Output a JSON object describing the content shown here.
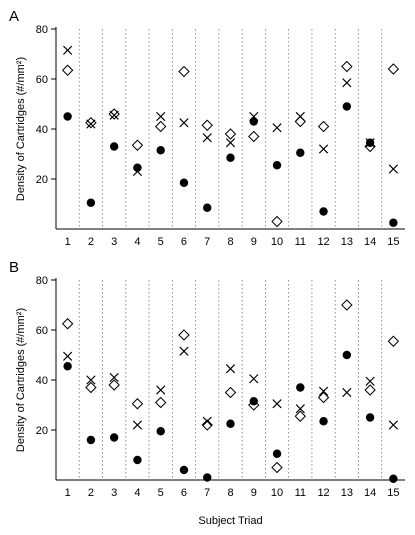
{
  "chart_data": [
    {
      "type": "scatter",
      "panel_label": "A",
      "ylabel": "Density of Cartridges (#/mm²)",
      "xlabel": "",
      "ylim": [
        0,
        80
      ],
      "yticks": [
        20,
        40,
        60,
        80
      ],
      "categories": [
        "1",
        "2",
        "3",
        "4",
        "5",
        "6",
        "7",
        "8",
        "9",
        "10",
        "11",
        "12",
        "13",
        "14",
        "15"
      ],
      "grid": "dotted vertical separators between triads",
      "series": [
        {
          "marker": "filled-circle",
          "values": [
            45,
            10.5,
            33,
            24.5,
            31.5,
            18.5,
            8.5,
            28.5,
            43,
            25.5,
            30.5,
            7,
            49,
            34.5,
            2.5
          ]
        },
        {
          "marker": "cross",
          "values": [
            71.5,
            42,
            45.5,
            23,
            45,
            42.5,
            36.5,
            34.5,
            45,
            40.5,
            45,
            32,
            58.5,
            34.5,
            24
          ]
        },
        {
          "marker": "open-diamond",
          "values": [
            63.5,
            42.5,
            46,
            33.5,
            41,
            63,
            41.5,
            38,
            37,
            3,
            43,
            41,
            65,
            33,
            64
          ]
        }
      ]
    },
    {
      "type": "scatter",
      "panel_label": "B",
      "ylabel": "Density of Cartridges (#/mm²)",
      "xlabel": "Subject Triad",
      "ylim": [
        0,
        80
      ],
      "yticks": [
        20,
        40,
        60,
        80
      ],
      "categories": [
        "1",
        "2",
        "3",
        "4",
        "5",
        "6",
        "7",
        "8",
        "9",
        "10",
        "11",
        "12",
        "13",
        "14",
        "15"
      ],
      "grid": "dotted vertical separators between triads",
      "series": [
        {
          "marker": "filled-circle",
          "values": [
            45.5,
            16,
            17,
            8,
            19.5,
            4,
            1,
            22.5,
            31.5,
            10.5,
            37,
            23.5,
            50,
            25,
            0.5
          ]
        },
        {
          "marker": "cross",
          "values": [
            49.5,
            40,
            41,
            22,
            36,
            51.5,
            23.5,
            44.5,
            40.5,
            30.5,
            28.5,
            35.5,
            35,
            39.5,
            22
          ]
        },
        {
          "marker": "open-diamond",
          "values": [
            62.5,
            37,
            38,
            30.5,
            31,
            58,
            22,
            35,
            30,
            5,
            25.5,
            33,
            70,
            36,
            55.5
          ]
        }
      ]
    }
  ]
}
